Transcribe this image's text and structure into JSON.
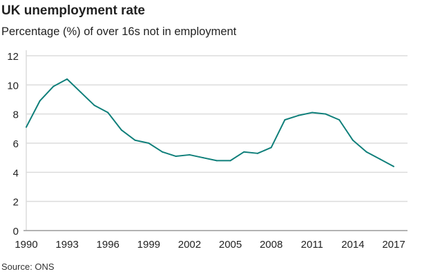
{
  "chart_data": {
    "type": "line",
    "title": "UK unemployment rate",
    "subtitle": "Percentage (%) of over 16s not in employment",
    "source": "Source: ONS",
    "xlabel": "",
    "ylabel": "",
    "x": [
      1990,
      1991,
      1992,
      1993,
      1994,
      1995,
      1996,
      1997,
      1998,
      1999,
      2000,
      2001,
      2002,
      2003,
      2004,
      2005,
      2006,
      2007,
      2008,
      2009,
      2010,
      2011,
      2012,
      2013,
      2014,
      2015,
      2016,
      2017
    ],
    "series": [
      {
        "values": [
          7.1,
          8.9,
          9.9,
          10.4,
          9.5,
          8.6,
          8.1,
          6.9,
          6.2,
          6.0,
          5.4,
          5.1,
          5.2,
          5.0,
          4.8,
          4.8,
          5.4,
          5.3,
          5.7,
          7.6,
          7.9,
          8.1,
          8.0,
          7.6,
          6.2,
          5.4,
          4.9,
          4.4
        ],
        "color": "#0f7f7a"
      }
    ],
    "xticks": [
      "1990",
      "1993",
      "1996",
      "1999",
      "2002",
      "2005",
      "2008",
      "2011",
      "2014",
      "2017"
    ],
    "yticks": [
      "0",
      "2",
      "4",
      "6",
      "8",
      "10",
      "12"
    ],
    "xlim": [
      1990,
      2017
    ],
    "ylim": [
      0,
      12
    ],
    "grid": true
  }
}
